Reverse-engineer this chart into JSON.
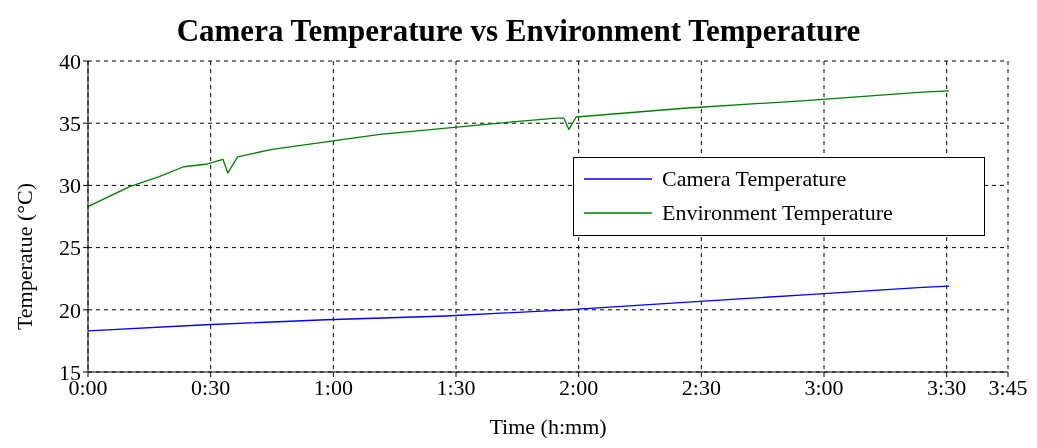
{
  "chart_data": {
    "type": "line",
    "title": "Camera Temperature vs Environment Temperature",
    "xlabel": "Time (h:mm)",
    "ylabel": "Temperatue (°C)",
    "xlim": [
      0,
      3.75
    ],
    "xticks": [
      {
        "value": 0,
        "label": "0:00"
      },
      {
        "value": 0.5,
        "label": "0:30"
      },
      {
        "value": 1,
        "label": "1:00"
      },
      {
        "value": 1.5,
        "label": "1:30"
      },
      {
        "value": 2,
        "label": "2:00"
      },
      {
        "value": 2.5,
        "label": "2:30"
      },
      {
        "value": 3,
        "label": "3:00"
      },
      {
        "value": 3.5,
        "label": "3:30"
      },
      {
        "value": 3.75,
        "label": "3:45"
      }
    ],
    "ylim": [
      15,
      40
    ],
    "yticks": [
      15,
      20,
      25,
      30,
      35,
      40
    ],
    "grid": true,
    "legend": "right",
    "line_style": "solid",
    "series": [
      {
        "name": "Camera Temperature",
        "color": "#0000ff",
        "x": [
          0,
          0.48,
          0.97,
          1.46,
          1.95,
          2.43,
          2.92,
          3.4,
          3.51
        ],
        "values": [
          18.3,
          18.8,
          19.2,
          19.5,
          20.0,
          20.6,
          21.2,
          21.8,
          21.9
        ]
      },
      {
        "name": "Environment Temperature",
        "color": "#008000",
        "x": [
          0,
          0.17,
          0.29,
          0.39,
          0.48,
          0.55,
          0.57,
          0.61,
          0.75,
          0.97,
          1.19,
          1.46,
          1.73,
          1.91,
          1.94,
          1.96,
          1.99,
          2.43,
          2.91,
          3.4,
          3.51
        ],
        "values": [
          28.3,
          29.9,
          30.7,
          31.5,
          31.7,
          32.1,
          31.0,
          32.3,
          32.9,
          33.5,
          34.1,
          34.6,
          35.1,
          35.4,
          35.4,
          34.5,
          35.5,
          36.2,
          36.8,
          37.5,
          37.6
        ]
      }
    ]
  }
}
